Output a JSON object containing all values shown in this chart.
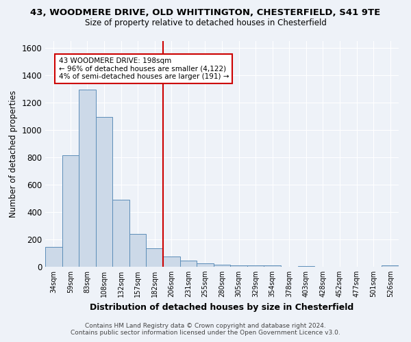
{
  "title_line1": "43, WOODMERE DRIVE, OLD WHITTINGTON, CHESTERFIELD, S41 9TE",
  "title_line2": "Size of property relative to detached houses in Chesterfield",
  "xlabel": "Distribution of detached houses by size in Chesterfield",
  "ylabel": "Number of detached properties",
  "footer_line1": "Contains HM Land Registry data © Crown copyright and database right 2024.",
  "footer_line2": "Contains public sector information licensed under the Open Government Licence v3.0.",
  "bin_labels": [
    "34sqm",
    "59sqm",
    "83sqm",
    "108sqm",
    "132sqm",
    "157sqm",
    "182sqm",
    "206sqm",
    "231sqm",
    "255sqm",
    "280sqm",
    "305sqm",
    "329sqm",
    "354sqm",
    "378sqm",
    "403sqm",
    "428sqm",
    "452sqm",
    "477sqm",
    "501sqm",
    "526sqm"
  ],
  "bar_values": [
    145,
    815,
    1295,
    1095,
    490,
    240,
    135,
    75,
    45,
    25,
    15,
    12,
    10,
    8,
    0,
    5,
    0,
    0,
    0,
    0,
    10
  ],
  "bar_color": "#ccd9e8",
  "bar_edge_color": "#5b8db8",
  "vline_bin_index": 7,
  "annotation_text_line1": "43 WOODMERE DRIVE: 198sqm",
  "annotation_text_line2": "← 96% of detached houses are smaller (4,122)",
  "annotation_text_line3": "4% of semi-detached houses are larger (191) →",
  "vline_color": "#cc0000",
  "annotation_box_color": "#ffffff",
  "annotation_box_edge": "#cc0000",
  "bg_color": "#eef2f8",
  "grid_color": "#ffffff",
  "ylim": [
    0,
    1650
  ],
  "yticks": [
    0,
    200,
    400,
    600,
    800,
    1000,
    1200,
    1400,
    1600
  ]
}
